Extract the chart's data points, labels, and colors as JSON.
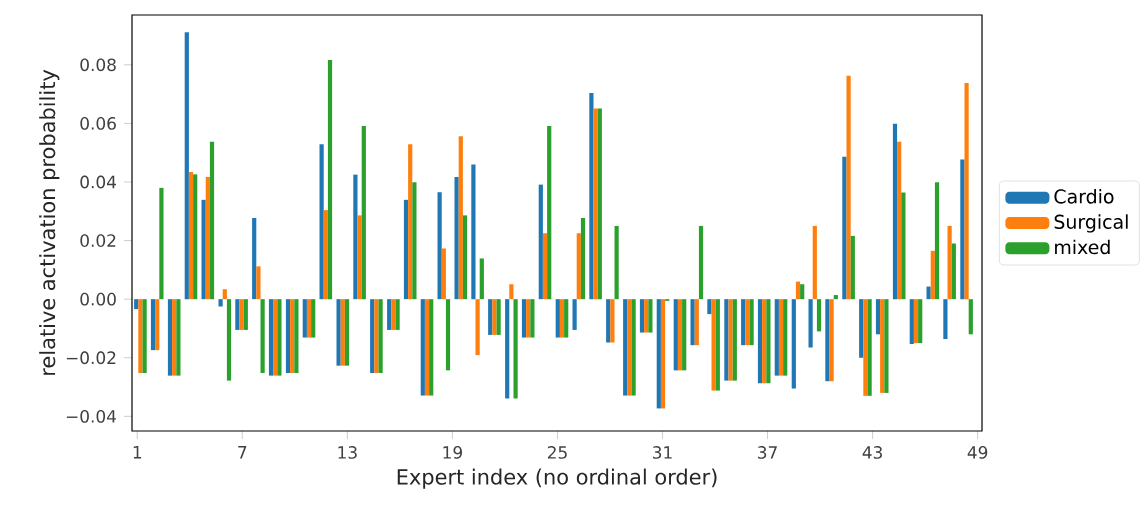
{
  "chart_data": {
    "type": "bar",
    "xlabel": "Expert index (no ordinal order)",
    "ylabel": "relative activation probability",
    "x": [
      1.18,
      2.14,
      3.11,
      4.07,
      5.03,
      6.0,
      6.96,
      7.92,
      8.88,
      9.85,
      10.81,
      11.77,
      12.74,
      13.7,
      14.66,
      15.63,
      16.59,
      17.55,
      18.51,
      19.48,
      20.44,
      21.4,
      22.37,
      23.33,
      24.29,
      25.26,
      26.22,
      27.18,
      28.14,
      29.11,
      30.07,
      31.03,
      32.0,
      32.96,
      33.92,
      34.89,
      35.85,
      36.81,
      37.77,
      38.74,
      39.7,
      40.66,
      41.63,
      42.59,
      43.55,
      44.52,
      45.48,
      46.44,
      47.4,
      48.37
    ],
    "series": [
      {
        "name": "Cardio",
        "color": "#1f77b4",
        "values": [
          -0.0034,
          -0.0174,
          -0.0261,
          0.0911,
          0.0339,
          -0.0025,
          -0.0105,
          0.0277,
          -0.0261,
          -0.0252,
          -0.0131,
          0.0529,
          -0.0227,
          0.0425,
          -0.0252,
          -0.0105,
          0.0339,
          -0.0329,
          0.0365,
          0.0417,
          0.046,
          -0.0122,
          -0.0339,
          -0.0131,
          0.0391,
          -0.0131,
          -0.0105,
          0.0704,
          -0.0148,
          -0.0329,
          -0.0114,
          -0.0373,
          -0.0243,
          -0.0157,
          -0.0051,
          -0.0278,
          -0.0157,
          -0.0287,
          -0.0261,
          -0.0305,
          -0.0165,
          -0.028,
          0.0486,
          -0.02,
          -0.012,
          0.0599,
          -0.0153,
          0.0043,
          -0.0136,
          0.0477
        ]
      },
      {
        "name": "Surgical",
        "color": "#ff7f0e",
        "values": [
          -0.0252,
          -0.0174,
          -0.0261,
          0.0434,
          0.0417,
          0.0034,
          -0.0105,
          0.0112,
          -0.0261,
          -0.0252,
          -0.0131,
          0.0304,
          -0.0227,
          0.0286,
          -0.0252,
          -0.0105,
          0.0529,
          -0.0329,
          0.0173,
          0.0556,
          -0.0191,
          -0.0122,
          0.0051,
          -0.0131,
          0.0225,
          -0.0131,
          0.0225,
          0.0651,
          -0.0148,
          -0.0329,
          -0.0114,
          -0.0373,
          -0.0243,
          -0.0157,
          -0.0312,
          -0.0278,
          -0.0157,
          -0.0287,
          -0.0261,
          0.006,
          0.025,
          -0.028,
          0.0763,
          -0.033,
          -0.032,
          0.0537,
          -0.015,
          0.0165,
          0.025,
          0.0738
        ]
      },
      {
        "name": "mixed",
        "color": "#2ca02c",
        "values": [
          -0.0252,
          0.038,
          -0.0261,
          0.0426,
          0.0537,
          -0.0278,
          -0.0105,
          -0.0252,
          -0.0261,
          -0.0252,
          -0.0131,
          0.0816,
          -0.0227,
          0.0591,
          -0.0252,
          -0.0105,
          0.0399,
          -0.0329,
          -0.0243,
          0.0286,
          0.0139,
          -0.0122,
          -0.0339,
          -0.0131,
          0.0591,
          -0.0131,
          0.0277,
          0.0651,
          0.025,
          -0.0329,
          -0.0114,
          -0.0006,
          -0.0243,
          0.025,
          -0.0312,
          -0.0278,
          -0.0157,
          -0.0287,
          -0.0261,
          0.0051,
          -0.011,
          0.0014,
          0.0216,
          -0.033,
          -0.032,
          0.0364,
          -0.015,
          0.0399,
          0.019,
          -0.012
        ]
      }
    ],
    "xlim": [
      0.7,
      49.25
    ],
    "xticks": [
      1,
      7,
      13,
      19,
      25,
      31,
      37,
      43,
      49
    ],
    "ylim": [
      -0.045,
      0.097
    ],
    "yticks": [
      {
        "value": -0.04,
        "label": "−0.04"
      },
      {
        "value": -0.02,
        "label": "−0.02"
      },
      {
        "value": 0.0,
        "label": "0.00"
      },
      {
        "value": 0.02,
        "label": "0.02"
      },
      {
        "value": 0.04,
        "label": "0.04"
      },
      {
        "value": 0.06,
        "label": "0.06"
      },
      {
        "value": 0.08,
        "label": "0.08"
      }
    ],
    "legend": "right"
  }
}
